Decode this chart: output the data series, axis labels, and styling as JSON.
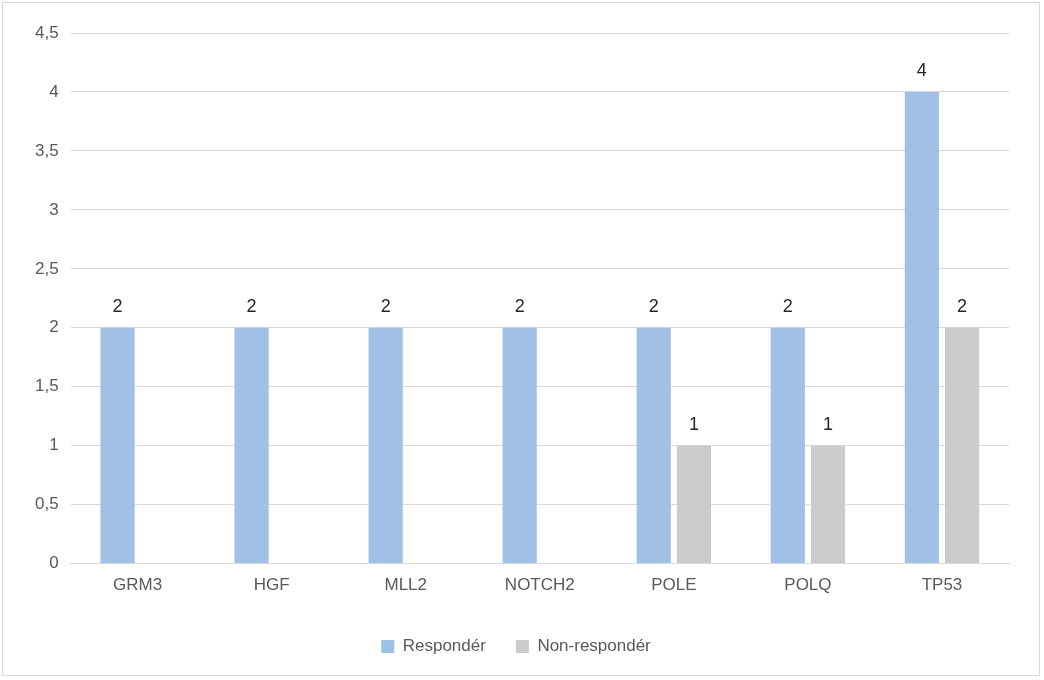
{
  "chart_data": {
    "type": "bar",
    "categories": [
      "GRM3",
      "HGF",
      "MLL2",
      "NOTCH2",
      "POLE",
      "POLQ",
      "TP53"
    ],
    "series": [
      {
        "name": "Respondér",
        "color": "#a0c0e6",
        "values": [
          2,
          2,
          2,
          2,
          2,
          2,
          4
        ]
      },
      {
        "name": "Non-respondér",
        "color": "#cbcbcb",
        "values": [
          null,
          null,
          null,
          null,
          1,
          1,
          2
        ]
      }
    ],
    "ylim": [
      0,
      4.5
    ],
    "yticks": [
      0,
      {
        "value": 0.5,
        "label": "0,5"
      },
      1,
      {
        "value": 1.5,
        "label": "1,5"
      },
      2,
      {
        "value": 2.5,
        "label": "2,5"
      },
      3,
      {
        "value": 3.5,
        "label": "3,5"
      },
      4,
      {
        "value": 4.5,
        "label": "4,5"
      }
    ],
    "grid": "y",
    "legend": "bottom",
    "data_labels": true
  }
}
